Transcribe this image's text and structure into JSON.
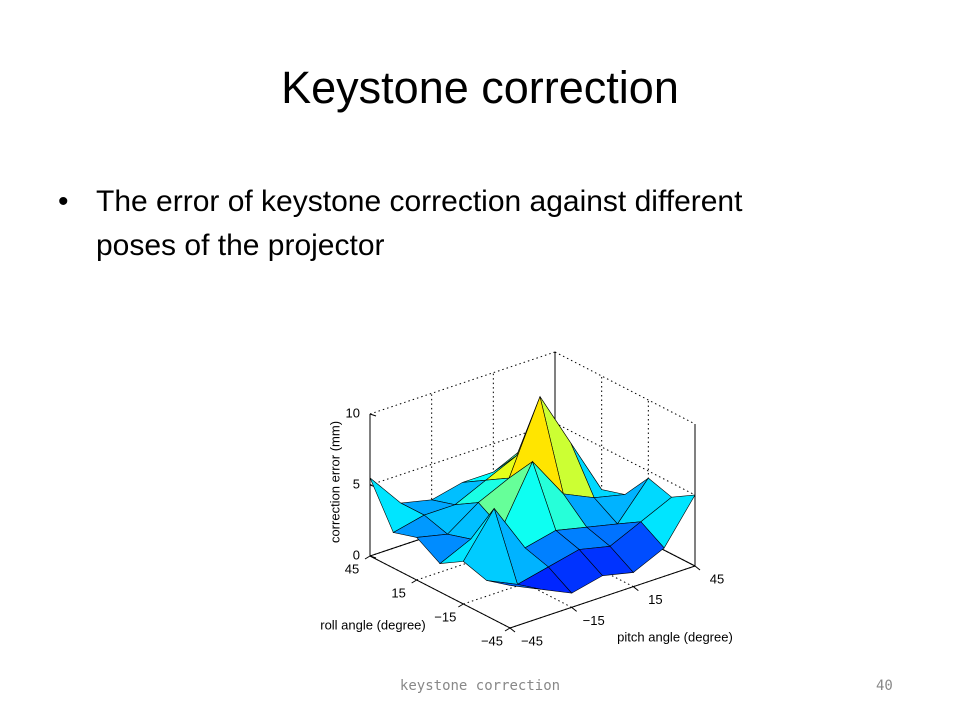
{
  "slide": {
    "title": "Keystone correction",
    "bullet": "The error of keystone correction against different poses of the projector",
    "footer": "keystone correction",
    "page_number": "40"
  },
  "chart_data": {
    "type": "surface",
    "x_label": "pitch angle (degree)",
    "y_label": "roll angle (degree)",
    "z_label": "correction error (mm)",
    "x": [
      -45,
      -30,
      -15,
      0,
      15,
      30,
      45
    ],
    "y": [
      -45,
      -30,
      -15,
      0,
      15,
      30,
      45
    ],
    "z": [
      [
        3,
        2,
        1,
        1.5,
        1,
        2,
        5
      ],
      [
        2.5,
        1.5,
        2,
        2.5,
        2,
        3,
        4
      ],
      [
        3,
        6,
        2.5,
        3,
        2.5,
        2,
        4.5
      ],
      [
        2,
        3,
        3,
        7,
        4,
        3,
        2.5
      ],
      [
        3,
        2.5,
        4,
        5,
        10,
        6,
        2
      ],
      [
        2.5,
        3,
        3,
        4,
        5,
        6,
        3
      ],
      [
        5.5,
        3,
        2.5,
        3,
        3,
        4,
        4
      ]
    ],
    "xlim": [
      -45,
      45
    ],
    "ylim": [
      -45,
      45
    ],
    "zlim": [
      0,
      10
    ],
    "xticks": [
      {
        "value": -45,
        "label": "−45"
      },
      {
        "value": -15,
        "label": "−15"
      },
      15,
      45
    ],
    "yticks": [
      {
        "value": -45,
        "label": "−45"
      },
      {
        "value": -15,
        "label": "−15"
      },
      15,
      45
    ],
    "zticks": [
      0,
      5,
      10
    ],
    "grid": true,
    "colormap": "jet"
  }
}
